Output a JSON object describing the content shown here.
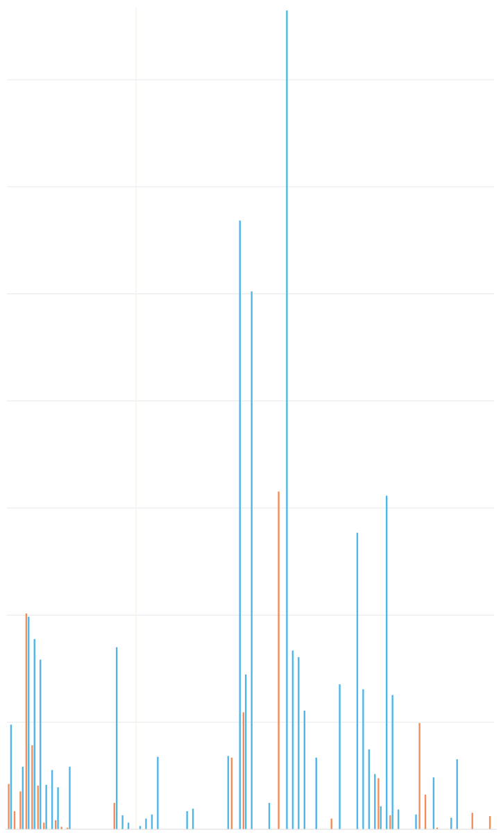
{
  "chart_data": {
    "type": "bar",
    "orientation": "vertical",
    "title": "",
    "xlabel": "",
    "ylabel": "",
    "ylim": [
      0,
      100
    ],
    "grid": true,
    "legend": "none",
    "colors": {
      "series_a": "#f28e5c",
      "series_b": "#4fb6e6"
    },
    "series": [
      {
        "values": [
          5.5,
          2.2,
          4.6,
          26.2,
          10.2,
          5.3,
          0.8,
          0,
          1.1,
          0.3,
          0.2,
          0,
          0,
          0,
          0,
          0,
          0,
          0,
          3.2,
          0,
          0,
          0,
          0,
          0,
          0,
          0,
          0,
          0,
          0,
          0,
          0,
          0,
          0,
          0,
          0,
          0,
          0,
          0,
          8.7,
          0,
          14.2,
          0,
          0,
          0,
          0,
          0,
          41.0,
          0,
          0,
          0,
          0,
          0,
          0,
          0,
          0,
          1.3,
          0,
          0,
          0,
          0,
          0,
          0,
          0,
          6.2,
          0,
          1.7,
          0,
          0,
          0,
          0,
          12.9,
          4.2,
          0,
          0.2,
          0,
          0,
          0,
          0,
          0,
          2.0,
          0,
          0,
          1.6
        ]
      },
      {
        "values": [
          12.7,
          0,
          7.6,
          25.8,
          23.1,
          20.6,
          5.4,
          7.2,
          5.1,
          0,
          7.6,
          0,
          0,
          0,
          0,
          0,
          0,
          0,
          22.1,
          1.7,
          0.8,
          0,
          0.4,
          1.3,
          1.8,
          8.8,
          0,
          0,
          0,
          0,
          2.2,
          2.5,
          0,
          0,
          0,
          0,
          0,
          8.9,
          0,
          73.9,
          18.8,
          65.3,
          0,
          0,
          3.2,
          0,
          0,
          99.4,
          21.7,
          20.9,
          14.4,
          0,
          8.7,
          0,
          0,
          0,
          17.6,
          0,
          0,
          36.0,
          17.0,
          9.7,
          6.7,
          2.8,
          40.5,
          16.3,
          2.4,
          0,
          0,
          1.8,
          0,
          0,
          6.3,
          0,
          0,
          1.4,
          8.5,
          0,
          0,
          0,
          0,
          0,
          0
        ]
      }
    ]
  }
}
